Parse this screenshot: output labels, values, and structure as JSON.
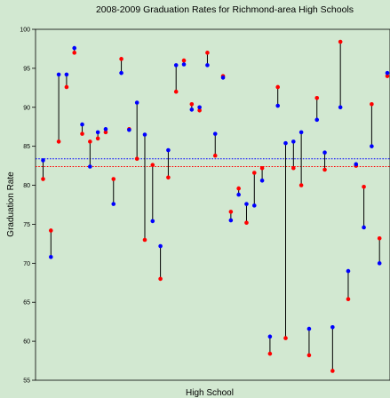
{
  "chart_data": {
    "type": "scatter",
    "title": "2008-2009 Graduation Rates for Richmond-area High Schools",
    "xlabel": "High School",
    "ylabel": "Graduation Rate",
    "ylim": [
      55,
      100
    ],
    "yticks": [
      55,
      60,
      65,
      70,
      75,
      80,
      85,
      90,
      95,
      100
    ],
    "grid": false,
    "colors": {
      "series_a": "#0000ff",
      "series_b": "#ff0000",
      "connector": "#000000"
    },
    "series": [
      {
        "values": [
          83.2,
          70.8,
          94.2,
          94.2,
          97.6,
          87.8,
          82.4,
          86.8,
          87.2,
          77.6,
          94.4,
          87.1,
          90.6,
          86.5,
          75.4,
          72.2,
          84.5,
          95.4,
          95.5,
          89.7,
          90.0,
          95.4,
          86.6,
          93.8,
          75.5,
          78.8,
          77.6,
          77.4,
          80.6,
          60.6,
          90.2,
          85.4,
          85.6,
          86.8,
          61.6,
          88.4,
          84.2,
          61.8,
          90.0,
          69.0,
          82.7,
          74.6,
          85.0,
          70.0,
          94.4
        ]
      },
      {
        "values": [
          80.8,
          74.2,
          85.6,
          92.6,
          97.0,
          86.6,
          85.6,
          86.0,
          86.8,
          80.8,
          96.2,
          87.2,
          83.4,
          73.0,
          82.6,
          68.0,
          81.0,
          92.0,
          96.0,
          90.4,
          89.6,
          97.0,
          83.8,
          94.0,
          76.6,
          79.6,
          75.2,
          81.6,
          82.2,
          58.4,
          92.6,
          60.4,
          82.2,
          80.0,
          58.2,
          91.2,
          82.0,
          56.2,
          98.4,
          65.4,
          82.5,
          79.8,
          90.4,
          73.2,
          94.0
        ]
      }
    ],
    "reference_lines": [
      {
        "value": 83.4,
        "color": "#0000ff",
        "style": "dotted"
      },
      {
        "value": 82.4,
        "color": "#ff0000",
        "style": "dotted"
      }
    ]
  }
}
